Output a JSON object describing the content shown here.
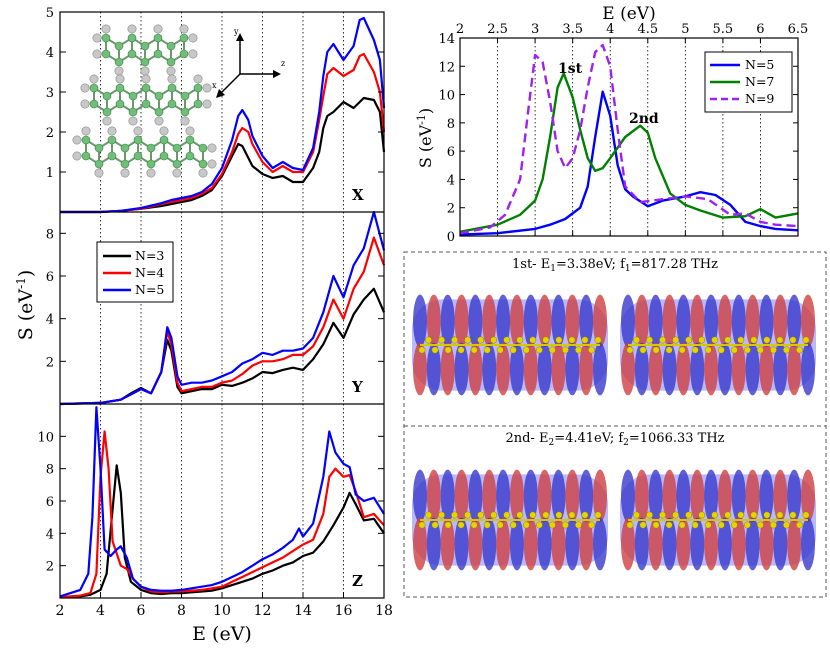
{
  "chart_data": [
    {
      "id": "left",
      "type": "line",
      "xlabel": "E (eV)",
      "ylabel": "S (eV",
      "ylabel_sup": "-1",
      "ylabel_close": ")",
      "xlim": [
        2,
        18
      ],
      "xticks": [
        "2",
        "4",
        "6",
        "8",
        "10",
        "12",
        "14",
        "16",
        "18"
      ],
      "gridlines_x": [
        4,
        6,
        8,
        10,
        12,
        14,
        16
      ],
      "colors": {
        "N=3": "#000000",
        "N=4": "#ff0000",
        "N=5": "#0000ff"
      },
      "legend": [
        "N=3",
        "N=4",
        "N=5"
      ],
      "inset": {
        "axes": [
          "y",
          "z",
          "x"
        ]
      },
      "panels": [
        {
          "label": "X",
          "ylim": [
            0,
            5
          ],
          "yticks": [
            "1",
            "2",
            "3",
            "4",
            "5"
          ],
          "series": [
            {
              "name": "N=3",
              "x": [
                2,
                4,
                5,
                6,
                7,
                7.5,
                8,
                8.5,
                9,
                9.5,
                10,
                10.5,
                10.8,
                11,
                11.5,
                12,
                12.5,
                13,
                13.5,
                14,
                14.5,
                14.8,
                15,
                15.2,
                15.5,
                16,
                16.5,
                17,
                17.5,
                17.8,
                18
              ],
              "y": [
                0,
                0,
                0.03,
                0.08,
                0.15,
                0.2,
                0.25,
                0.3,
                0.4,
                0.55,
                0.9,
                1.4,
                1.7,
                1.65,
                1.15,
                0.95,
                0.85,
                0.9,
                0.75,
                0.75,
                1.1,
                1.5,
                2.1,
                2.4,
                2.5,
                2.75,
                2.6,
                2.85,
                2.8,
                2.5,
                1.5
              ]
            },
            {
              "name": "N=4",
              "x": [
                2,
                4,
                5,
                6,
                7,
                7.5,
                8,
                8.5,
                9,
                9.5,
                10,
                10.5,
                10.8,
                11,
                11.3,
                11.5,
                12,
                12.5,
                13,
                13.5,
                14,
                14.5,
                14.8,
                15,
                15.2,
                15.5,
                16,
                16.5,
                16.8,
                17,
                17.5,
                17.8,
                18
              ],
              "y": [
                0,
                0,
                0.03,
                0.08,
                0.2,
                0.25,
                0.3,
                0.35,
                0.45,
                0.6,
                0.95,
                1.5,
                1.95,
                2.1,
                2.0,
                1.7,
                1.25,
                1.0,
                1.15,
                1.0,
                1.0,
                1.5,
                2.3,
                2.9,
                3.45,
                3.6,
                3.4,
                3.55,
                3.9,
                3.95,
                3.5,
                3.0,
                2.0
              ]
            },
            {
              "name": "N=5",
              "x": [
                2,
                4,
                5,
                6,
                7,
                7.5,
                8,
                8.5,
                9,
                9.5,
                10,
                10.5,
                10.8,
                11,
                11.3,
                11.5,
                12,
                12.5,
                13,
                13.5,
                14,
                14.5,
                14.8,
                15,
                15.2,
                15.5,
                16,
                16.5,
                16.8,
                17,
                17.5,
                17.8,
                18
              ],
              "y": [
                0,
                0,
                0.03,
                0.1,
                0.22,
                0.3,
                0.35,
                0.4,
                0.5,
                0.7,
                1.1,
                1.8,
                2.4,
                2.55,
                2.3,
                1.9,
                1.4,
                1.1,
                1.25,
                1.1,
                1.05,
                1.6,
                2.5,
                3.4,
                4.0,
                4.2,
                3.8,
                4.15,
                4.8,
                4.85,
                4.3,
                3.8,
                2.6
              ]
            }
          ]
        },
        {
          "label": "Y",
          "ylim": [
            0,
            9
          ],
          "yticks": [
            "2",
            "4",
            "6",
            "8"
          ],
          "series": [
            {
              "name": "N=3",
              "x": [
                2,
                4,
                5,
                5.5,
                6,
                6.5,
                7,
                7.3,
                7.5,
                7.8,
                8,
                8.5,
                9,
                9.5,
                10,
                10.5,
                11,
                11.5,
                12,
                12.5,
                13,
                13.5,
                14,
                14.5,
                15,
                15.5,
                16,
                16.5,
                17,
                17.5,
                18
              ],
              "y": [
                0,
                0.05,
                0.2,
                0.5,
                0.75,
                0.5,
                1.5,
                3.0,
                2.5,
                0.8,
                0.5,
                0.6,
                0.7,
                0.7,
                0.9,
                0.85,
                1.0,
                1.2,
                1.5,
                1.45,
                1.6,
                1.7,
                1.6,
                2.1,
                2.8,
                3.8,
                3.1,
                4.2,
                4.9,
                5.4,
                4.3
              ]
            },
            {
              "name": "N=4",
              "x": [
                2,
                4,
                5,
                5.5,
                6,
                6.5,
                7,
                7.3,
                7.5,
                7.8,
                8,
                8.5,
                9,
                9.5,
                10,
                10.5,
                11,
                11.5,
                12,
                12.5,
                13,
                13.5,
                14,
                14.5,
                15,
                15.5,
                16,
                16.5,
                17,
                17.5,
                18
              ],
              "y": [
                0,
                0.05,
                0.2,
                0.45,
                0.7,
                0.5,
                1.5,
                3.4,
                2.8,
                1.0,
                0.6,
                0.7,
                0.8,
                0.8,
                1.0,
                1.1,
                1.4,
                1.8,
                2.0,
                2.0,
                2.1,
                2.3,
                2.3,
                2.7,
                3.6,
                4.9,
                4.0,
                5.4,
                6.2,
                7.8,
                6.5
              ]
            },
            {
              "name": "N=5",
              "x": [
                2,
                4,
                5,
                5.5,
                6,
                6.5,
                7,
                7.3,
                7.5,
                7.8,
                8,
                8.5,
                9,
                9.5,
                10,
                10.5,
                11,
                11.5,
                12,
                12.5,
                13,
                13.5,
                14,
                14.5,
                15,
                15.5,
                16,
                16.5,
                17,
                17.5,
                18
              ],
              "y": [
                0,
                0.05,
                0.2,
                0.45,
                0.7,
                0.5,
                1.5,
                3.6,
                3.1,
                1.3,
                0.9,
                1.0,
                1.0,
                1.1,
                1.3,
                1.5,
                1.9,
                2.1,
                2.4,
                2.3,
                2.5,
                2.5,
                2.6,
                3.1,
                4.3,
                6.0,
                5.0,
                6.5,
                7.3,
                9.0,
                7.2
              ]
            }
          ]
        },
        {
          "label": "Z",
          "ylim": [
            0,
            12
          ],
          "yticks": [
            "2",
            "4",
            "6",
            "8",
            "10"
          ],
          "series": [
            {
              "name": "N=3",
              "x": [
                2,
                3,
                3.5,
                4,
                4.3,
                4.6,
                4.8,
                5,
                5.2,
                5.5,
                6,
                6.5,
                7,
                7.5,
                8,
                8.5,
                9,
                9.5,
                10,
                10.5,
                11,
                11.5,
                12,
                12.5,
                13,
                13.5,
                14,
                14.5,
                15,
                15.5,
                16,
                16.3,
                16.6,
                17,
                17.5,
                18
              ],
              "y": [
                0.05,
                0.1,
                0.2,
                0.5,
                1.5,
                5.5,
                8.2,
                6.5,
                2.5,
                1.0,
                0.5,
                0.3,
                0.25,
                0.3,
                0.3,
                0.35,
                0.4,
                0.45,
                0.6,
                0.8,
                1.0,
                1.2,
                1.5,
                1.7,
                2.0,
                2.2,
                2.6,
                2.8,
                3.5,
                4.5,
                5.6,
                6.5,
                5.8,
                4.8,
                4.9,
                4.0
              ]
            },
            {
              "name": "N=4",
              "x": [
                2,
                3,
                3.5,
                3.8,
                4,
                4.2,
                4.4,
                4.6,
                5,
                5.3,
                5.6,
                6,
                6.5,
                7,
                7.5,
                8,
                8.5,
                9,
                9.5,
                10,
                10.5,
                11,
                11.5,
                12,
                12.5,
                13,
                13.5,
                14,
                14.5,
                15,
                15.3,
                15.6,
                16,
                16.3,
                16.6,
                17,
                17.5,
                18
              ],
              "y": [
                0.05,
                0.15,
                0.3,
                1.5,
                7.5,
                10.3,
                8.0,
                3.5,
                2.0,
                1.8,
                1.2,
                0.7,
                0.4,
                0.35,
                0.4,
                0.4,
                0.45,
                0.5,
                0.6,
                0.7,
                1.0,
                1.3,
                1.6,
                1.9,
                2.2,
                2.5,
                2.9,
                3.3,
                3.6,
                5.2,
                7.5,
                8.0,
                7.5,
                7.6,
                6.6,
                5.0,
                5.2,
                4.5
              ]
            },
            {
              "name": "N=5",
              "x": [
                2,
                3,
                3.4,
                3.6,
                3.8,
                4,
                4.2,
                4.5,
                4.8,
                5,
                5.3,
                5.6,
                6,
                6.5,
                7,
                7.5,
                8,
                8.5,
                9,
                9.5,
                10,
                10.5,
                11,
                11.5,
                12,
                12.5,
                13,
                13.5,
                13.8,
                14,
                14.5,
                15,
                15.3,
                15.6,
                16,
                16.3,
                16.6,
                17,
                17.5,
                18
              ],
              "y": [
                0.1,
                0.5,
                1.5,
                5.0,
                11.8,
                8.0,
                3.0,
                2.6,
                3.0,
                3.2,
                2.5,
                1.2,
                0.7,
                0.5,
                0.45,
                0.45,
                0.5,
                0.6,
                0.7,
                0.8,
                1.0,
                1.3,
                1.6,
                2.0,
                2.4,
                2.7,
                3.1,
                3.6,
                4.3,
                3.8,
                4.6,
                7.5,
                10.3,
                9.0,
                8.3,
                8.1,
                6.4,
                6.0,
                6.2,
                5.2
              ]
            }
          ]
        }
      ]
    },
    {
      "id": "right",
      "type": "line",
      "xlabel": "E (eV)",
      "ylabel": "S (eV",
      "ylabel_sup": "-1",
      "ylabel_close": ")",
      "xlim": [
        2,
        6.5
      ],
      "ylim": [
        0,
        14
      ],
      "xticks": [
        "2",
        "2.5",
        "3",
        "3.5",
        "4",
        "4.5",
        "5",
        "5.5",
        "6",
        "6.5"
      ],
      "yticks": [
        "0",
        "2",
        "4",
        "6",
        "8",
        "10",
        "12",
        "14"
      ],
      "gridlines_x": [
        2.5,
        3,
        3.5,
        4,
        4.5,
        5,
        5.5,
        6
      ],
      "legend": [
        "N=5",
        "N=7",
        "N=9"
      ],
      "annotations": [
        "1st",
        "2nd"
      ],
      "series": [
        {
          "name": "N=5",
          "color": "#0000ff",
          "dash": false,
          "x": [
            2,
            2.5,
            3,
            3.2,
            3.4,
            3.6,
            3.7,
            3.8,
            3.9,
            4.0,
            4.1,
            4.2,
            4.3,
            4.5,
            4.7,
            5.0,
            5.2,
            5.4,
            5.6,
            5.8,
            6.0,
            6.2,
            6.5
          ],
          "y": [
            0.1,
            0.2,
            0.5,
            0.8,
            1.2,
            2.0,
            3.5,
            7.0,
            10.2,
            8.5,
            5.0,
            3.3,
            2.8,
            2.1,
            2.5,
            2.8,
            3.1,
            2.9,
            2.2,
            1.0,
            0.7,
            0.5,
            0.4
          ]
        },
        {
          "name": "N=7",
          "color": "#008000",
          "dash": false,
          "x": [
            2,
            2.5,
            2.8,
            3.0,
            3.1,
            3.2,
            3.3,
            3.38,
            3.5,
            3.6,
            3.7,
            3.8,
            3.9,
            4.0,
            4.2,
            4.4,
            4.5,
            4.6,
            4.8,
            5.0,
            5.2,
            5.5,
            5.8,
            6.0,
            6.2,
            6.5
          ],
          "y": [
            0.3,
            0.8,
            1.5,
            2.5,
            4.0,
            7.0,
            10.5,
            11.5,
            9.8,
            7.5,
            5.5,
            4.6,
            4.8,
            5.5,
            7.0,
            7.8,
            7.3,
            5.5,
            3.0,
            2.2,
            1.8,
            1.3,
            1.4,
            1.9,
            1.3,
            1.6
          ]
        },
        {
          "name": "N=9",
          "color": "#a020f0",
          "dash": true,
          "x": [
            2,
            2.4,
            2.6,
            2.8,
            2.9,
            3.0,
            3.1,
            3.2,
            3.3,
            3.4,
            3.5,
            3.6,
            3.7,
            3.8,
            3.9,
            4.0,
            4.1,
            4.2,
            4.4,
            4.7,
            5.0,
            5.3,
            5.6,
            5.8,
            6.0,
            6.2,
            6.5
          ],
          "y": [
            0.2,
            0.6,
            1.5,
            4.0,
            8.5,
            12.8,
            12.3,
            9.5,
            6.0,
            4.8,
            5.5,
            7.5,
            10.5,
            13.0,
            13.5,
            12.0,
            7.5,
            3.5,
            2.4,
            2.6,
            2.8,
            2.6,
            1.5,
            1.6,
            1.0,
            0.8,
            0.7
          ]
        }
      ]
    }
  ],
  "captions": [
    {
      "label": "1st- ",
      "e_name": "E",
      "e_sub": "1",
      "e_val": "=3.38eV; ",
      "f_name": "f",
      "f_sub": "1",
      "f_val": "=817.28 THz"
    },
    {
      "label": "2nd- ",
      "e_name": "E",
      "e_sub": "2",
      "e_val": "=4.41eV; ",
      "f_name": "f",
      "f_sub": "2",
      "f_val": "=1066.33 THz"
    }
  ]
}
